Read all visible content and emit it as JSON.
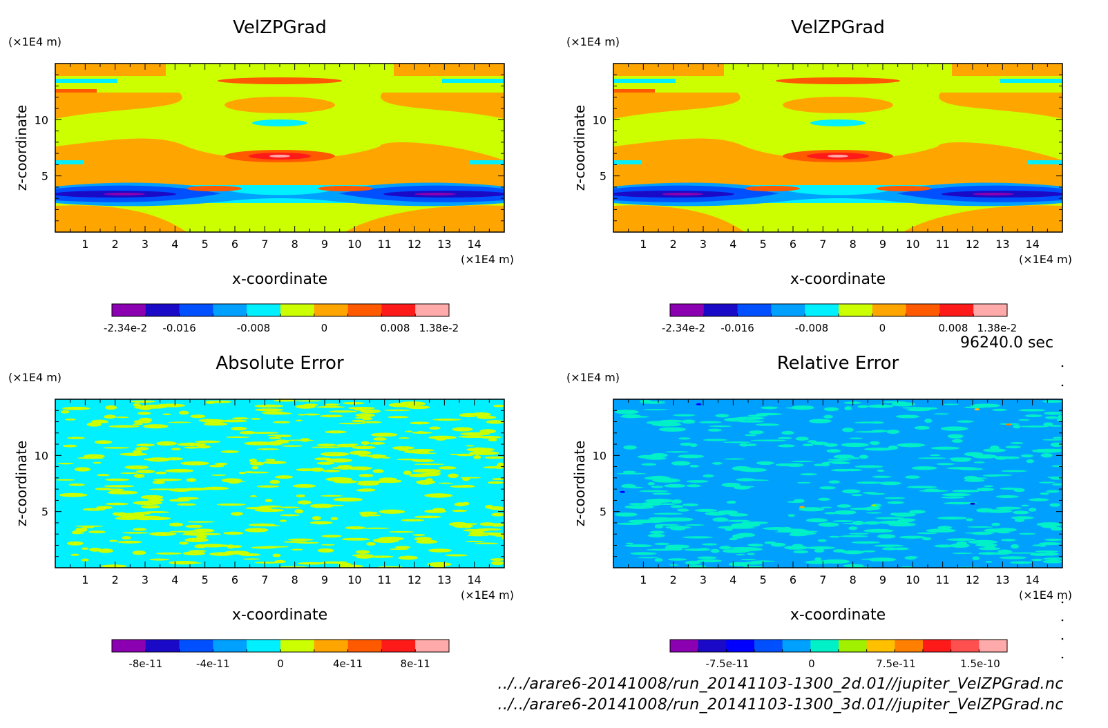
{
  "time_label": "96240.0 sec",
  "file_paths": [
    "../../arare6-20141008/run_20141103-1300_2d.01//jupiter_VelZPGrad.nc",
    "../../arare6-20141008/run_20141103-1300_3d.01//jupiter_VelZPGrad.nc"
  ],
  "chart_data": [
    {
      "type": "heatmap",
      "title": "VelZPGrad",
      "xlabel": "x-coordinate",
      "ylabel": "z-coordinate",
      "x_unit": "(×1E4 m)",
      "y_unit": "(×1E4 m)",
      "xlim": [
        0,
        15
      ],
      "ylim": [
        0,
        15
      ],
      "x_ticks": [
        "1",
        "2",
        "3",
        "4",
        "5",
        "6",
        "7",
        "8",
        "9",
        "10",
        "11",
        "12",
        "13",
        "14"
      ],
      "y_ticks": [
        "5",
        "10"
      ],
      "colorbar": {
        "colors": [
          "#8b00b0",
          "#1a0ac8",
          "#0050ff",
          "#00a0ff",
          "#00f0ff",
          "#ccff00",
          "#ffa500",
          "#ff5a00",
          "#ff1a1a",
          "#ffaaaa"
        ],
        "labels": [
          "-2.34e-2",
          "-0.016",
          "-0.008",
          "0",
          "0.008",
          "1.38e-2"
        ]
      }
    },
    {
      "type": "heatmap",
      "title": "VelZPGrad",
      "xlabel": "x-coordinate",
      "ylabel": "z-coordinate",
      "x_unit": "(×1E4 m)",
      "y_unit": "(×1E4 m)",
      "xlim": [
        0,
        15
      ],
      "ylim": [
        0,
        15
      ],
      "x_ticks": [
        "1",
        "2",
        "3",
        "4",
        "5",
        "6",
        "7",
        "8",
        "9",
        "10",
        "11",
        "12",
        "13",
        "14"
      ],
      "y_ticks": [
        "5",
        "10"
      ],
      "colorbar": {
        "colors": [
          "#8b00b0",
          "#1a0ac8",
          "#0050ff",
          "#00a0ff",
          "#00f0ff",
          "#ccff00",
          "#ffa500",
          "#ff5a00",
          "#ff1a1a",
          "#ffaaaa"
        ],
        "labels": [
          "-2.34e-2",
          "-0.016",
          "-0.008",
          "0",
          "0.008",
          "1.38e-2"
        ]
      }
    },
    {
      "type": "heatmap",
      "title": "Absolute Error",
      "xlabel": "x-coordinate",
      "ylabel": "z-coordinate",
      "x_unit": "(×1E4 m)",
      "y_unit": "(×1E4 m)",
      "xlim": [
        0,
        15
      ],
      "ylim": [
        0,
        15
      ],
      "x_ticks": [
        "1",
        "2",
        "3",
        "4",
        "5",
        "6",
        "7",
        "8",
        "9",
        "10",
        "11",
        "12",
        "13",
        "14"
      ],
      "y_ticks": [
        "5",
        "10"
      ],
      "colorbar": {
        "colors": [
          "#8b00b0",
          "#1a0ac8",
          "#0050ff",
          "#00a0ff",
          "#00f0ff",
          "#ccff00",
          "#ffa500",
          "#ff5a00",
          "#ff1a1a",
          "#ffaaaa"
        ],
        "labels": [
          "-8e-11",
          "-4e-11",
          "0",
          "4e-11",
          "8e-11"
        ]
      }
    },
    {
      "type": "heatmap",
      "title": "Relative Error",
      "xlabel": "x-coordinate",
      "ylabel": "z-coordinate",
      "x_unit": "(×1E4 m)",
      "y_unit": "(×1E4 m)",
      "xlim": [
        0,
        15
      ],
      "ylim": [
        0,
        15
      ],
      "x_ticks": [
        "1",
        "2",
        "3",
        "4",
        "5",
        "6",
        "7",
        "8",
        "9",
        "10",
        "11",
        "12",
        "13",
        "14"
      ],
      "y_ticks": [
        "5",
        "10"
      ],
      "colorbar": {
        "colors": [
          "#8b00b0",
          "#1a0ac8",
          "#0000ff",
          "#0050ff",
          "#00a0ff",
          "#00f0c8",
          "#a0f000",
          "#ffc000",
          "#ff8000",
          "#ff1a1a",
          "#ff5050",
          "#ffaaaa"
        ],
        "labels": [
          "-7.5e-11",
          "0",
          "7.5e-11",
          "1.5e-10"
        ]
      }
    }
  ]
}
